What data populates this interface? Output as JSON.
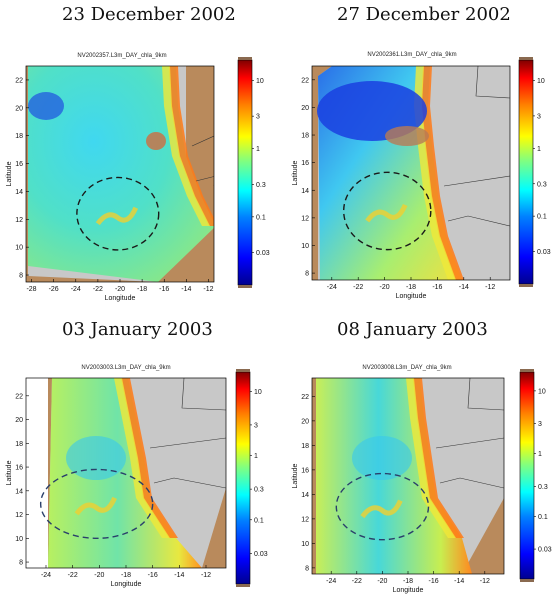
{
  "colors": {
    "land": "#b98a5c",
    "nodata": "#c8c8c8",
    "circle": "#1a1a1a",
    "circle_alt": "#2a3f6b"
  },
  "colorbar": {
    "tick_labels": [
      "10",
      "3",
      "1",
      "0.3",
      "0.1",
      "0.03"
    ],
    "values": [
      10,
      3,
      1,
      0.3,
      0.1,
      0.03
    ],
    "scale": "log",
    "range": [
      0.01,
      20
    ],
    "colormap": [
      "#00008f",
      "#0000ff",
      "#0080ff",
      "#00ffff",
      "#80ff80",
      "#ffff00",
      "#ff8000",
      "#ff0000",
      "#800000"
    ]
  },
  "panels": [
    {
      "id": "p1",
      "date": "23 December 2002",
      "product": "NV2002357.L3m_DAY_chla_9km",
      "xlabel": "Longitude",
      "ylabel": "Latitude",
      "xticks": [
        -28,
        -26,
        -24,
        -22,
        -20,
        -18,
        -16,
        -14,
        -12
      ],
      "yticks": [
        8,
        10,
        12,
        14,
        16,
        18,
        20,
        22
      ],
      "xlim": [
        -28.5,
        -11.5
      ],
      "ylim": [
        7.5,
        23.0
      ],
      "ellipse": {
        "lon": -20.2,
        "lat": 12.4,
        "rlon": 3.7,
        "rlat": 2.6
      },
      "circle_style": "black"
    },
    {
      "id": "p2",
      "date": "27 December 2002",
      "product": "NV2002361.L3m_DAY_chla_9km",
      "xlabel": "Longitude",
      "ylabel": "Latitude",
      "xticks": [
        -24,
        -22,
        -20,
        -18,
        -16,
        -14,
        -12
      ],
      "yticks": [
        8,
        10,
        12,
        14,
        16,
        18,
        20,
        22
      ],
      "xlim": [
        -25.5,
        -10.5
      ],
      "ylim": [
        7.5,
        23.0
      ],
      "ellipse": {
        "lon": -19.8,
        "lat": 12.5,
        "rlon": 3.3,
        "rlat": 2.8
      },
      "circle_style": "black"
    },
    {
      "id": "p3",
      "date": "03 January 2003",
      "product": "NV2003003.L3m_DAY_chla_9km",
      "xlabel": "Longitude",
      "ylabel": "Latitude",
      "xticks": [
        -24,
        -22,
        -20,
        -18,
        -16,
        -14,
        -12
      ],
      "yticks": [
        8,
        10,
        12,
        14,
        16,
        18,
        20,
        22
      ],
      "xlim": [
        -25.5,
        -10.5
      ],
      "ylim": [
        7.5,
        23.5
      ],
      "ellipse": {
        "lon": -20.2,
        "lat": 12.9,
        "rlon": 4.2,
        "rlat": 2.9
      },
      "circle_style": "blue"
    },
    {
      "id": "p4",
      "date": "08 January 2003",
      "product": "NV2003008.L3m_DAY_chla_9km",
      "xlabel": "Longitude",
      "ylabel": "Latitude",
      "xticks": [
        -24,
        -22,
        -20,
        -18,
        -16,
        -14,
        -12
      ],
      "yticks": [
        8,
        10,
        12,
        14,
        16,
        18,
        20,
        22
      ],
      "xlim": [
        -25.5,
        -10.5
      ],
      "ylim": [
        7.5,
        23.5
      ],
      "ellipse": {
        "lon": -20.0,
        "lat": 13.0,
        "rlon": 3.6,
        "rlat": 2.7
      },
      "circle_style": "blue"
    }
  ]
}
